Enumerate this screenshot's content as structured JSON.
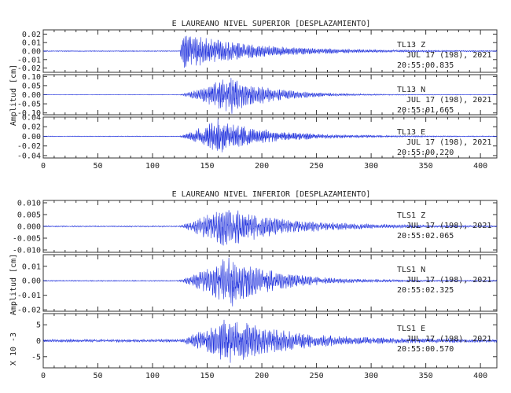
{
  "chart_data": [
    {
      "type": "line",
      "title": "E LAUREANO NIVEL SUPERIOR [DESPLAZAMIENTO]",
      "ylabel": "Amplitud [cm]",
      "xlim": [
        0,
        415
      ],
      "xticks": [
        "0",
        "50",
        "100",
        "150",
        "200",
        "250",
        "300",
        "350",
        "400"
      ],
      "line_color": "#2233dd",
      "traces": [
        {
          "station": "TL13",
          "component": "Z",
          "date": "JUL 17 (198), 2021",
          "time": "20:55:00.835",
          "ylim": [
            -0.025,
            0.025
          ],
          "yticks": [
            "0.02",
            "0.01",
            "0.00",
            "-0.01",
            "-0.02"
          ],
          "ytick_values": [
            0.02,
            0.01,
            0.0,
            -0.01,
            -0.02
          ],
          "onset": 125,
          "noise": 0.0004,
          "peak_time": 127,
          "peak_amp": 0.018,
          "rise": 3,
          "decay": 60,
          "period": 1.2
        },
        {
          "station": "TL13",
          "component": "N",
          "date": "JUL 17 (198), 2021",
          "time": "20:55:01.665",
          "ylim": [
            -0.11,
            0.11
          ],
          "yticks": [
            "0.10",
            "0.05",
            "0.00",
            "-0.05",
            "-0.10"
          ],
          "ytick_values": [
            0.1,
            0.05,
            0.0,
            -0.05,
            -0.1
          ],
          "onset": 125,
          "noise": 0.001,
          "peak_time": 172,
          "peak_amp": 0.085,
          "rise": 28,
          "decay": 35,
          "period": 1.3
        },
        {
          "station": "TL13",
          "component": "E",
          "date": "JUL 17 (198), 2021",
          "time": "20:55:00.220",
          "ylim": [
            -0.045,
            0.04
          ],
          "yticks": [
            "0.04",
            "0.02",
            "0.00",
            "-0.02",
            "-0.04"
          ],
          "ytick_values": [
            0.04,
            0.02,
            0.0,
            -0.02,
            -0.04
          ],
          "onset": 124,
          "noise": 0.0006,
          "peak_time": 160,
          "peak_amp": 0.028,
          "rise": 25,
          "decay": 45,
          "period": 1.1
        }
      ]
    },
    {
      "type": "line",
      "title": "E LAUREANO NIVEL INFERIOR [DESPLAZAMIENTO]",
      "ylabel": "Amplitud [cm]",
      "ylabel_bottom": "X 10 -3",
      "xlim": [
        0,
        415
      ],
      "xticks": [
        "0",
        "50",
        "100",
        "150",
        "200",
        "250",
        "300",
        "350",
        "400"
      ],
      "line_color": "#2233dd",
      "traces": [
        {
          "station": "TLS1",
          "component": "Z",
          "date": "JUL 17 (198), 2021",
          "time": "20:55:02.065",
          "ylim": [
            -0.011,
            0.011
          ],
          "yticks": [
            "0.010",
            "0.005",
            "0.000",
            "-0.005",
            "-0.010"
          ],
          "ytick_values": [
            0.01,
            0.005,
            0.0,
            -0.005,
            -0.01
          ],
          "onset": 124,
          "noise": 0.0002,
          "peak_time": 165,
          "peak_amp": 0.007,
          "rise": 20,
          "decay": 55,
          "period": 1.4
        },
        {
          "station": "TLS1",
          "component": "N",
          "date": "JUL 17 (198), 2021",
          "time": "20:55:02.325",
          "ylim": [
            -0.021,
            0.018
          ],
          "yticks": [
            "0.01",
            "0.00",
            "-0.01",
            "-0.02"
          ],
          "ytick_values": [
            0.01,
            0.0,
            -0.01,
            -0.02
          ],
          "onset": 124,
          "noise": 0.0003,
          "peak_time": 172,
          "peak_amp": 0.014,
          "rise": 25,
          "decay": 40,
          "period": 1.4
        },
        {
          "station": "TLS1",
          "component": "E",
          "date": "JUL 17 (198), 2021",
          "time": "20:55:00.570",
          "ylim": [
            -8.5,
            8.5
          ],
          "yticks": [
            "5",
            "0",
            "-5"
          ],
          "ytick_values": [
            5,
            0,
            -5
          ],
          "onset": 124,
          "noise": 0.35,
          "peak_time": 170,
          "peak_amp": 5.5,
          "rise": 30,
          "decay": 55,
          "period": 1.3
        }
      ]
    }
  ]
}
